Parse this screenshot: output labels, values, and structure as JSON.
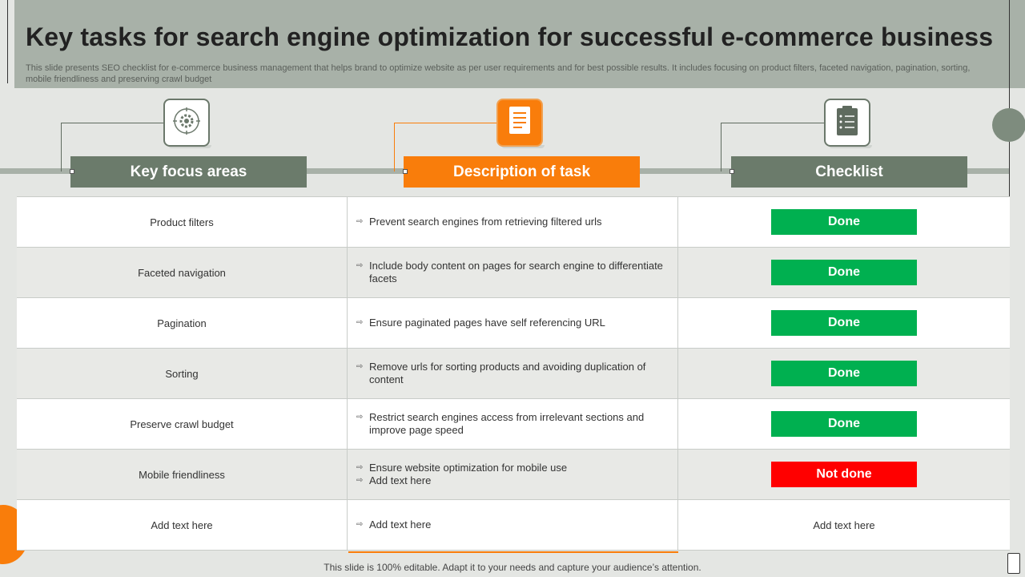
{
  "title": "Key tasks for search engine optimization for successful e-commerce business",
  "subtitle": "This slide presents SEO checklist for e-commerce business management that helps brand to optimize website as per user requirements and for best possible results. It includes focusing on product filters, faceted navigation, pagination, sorting, mobile friendliness and preserving crawl budget",
  "columns": [
    {
      "label": "Key focus areas",
      "icon": "gear-icon"
    },
    {
      "label": "Description of task",
      "icon": "document-icon"
    },
    {
      "label": "Checklist",
      "icon": "clipboard-icon"
    }
  ],
  "rows": [
    {
      "area": "Product filters",
      "tasks": [
        "Prevent  search  engines  from  retrieving  filtered  urls"
      ],
      "status": "Done"
    },
    {
      "area": "Faceted navigation",
      "tasks": [
        "Include  body  content  on  pages  for  search  engine  to  differentiate facets"
      ],
      "status": "Done"
    },
    {
      "area": "Pagination",
      "tasks": [
        "Ensure  paginated  pages  have  self  referencing  URL"
      ],
      "status": "Done"
    },
    {
      "area": "Sorting",
      "tasks": [
        "Remove  urls  for  sorting  products  and  avoiding  duplication  of content"
      ],
      "status": "Done"
    },
    {
      "area": "Preserve  crawl  budget",
      "tasks": [
        "Restrict  search  engines  access  from  irrelevant   sections  and improve  page  speed"
      ],
      "status": "Done"
    },
    {
      "area": "Mobile friendliness",
      "tasks": [
        "Ensure  website  optimization  for  mobile  use",
        "Add text here"
      ],
      "status": "Not done"
    },
    {
      "area": "Add text here",
      "tasks": [
        "Add text here"
      ],
      "status": "Add text here"
    }
  ],
  "footer": "This slide is 100% editable. Adapt it to your needs and capture your audience’s attention.",
  "colors": {
    "accent_gray": "#6b7b6b",
    "accent_orange": "#f97d0b",
    "done": "#00b050",
    "not_done": "#ff0000"
  }
}
